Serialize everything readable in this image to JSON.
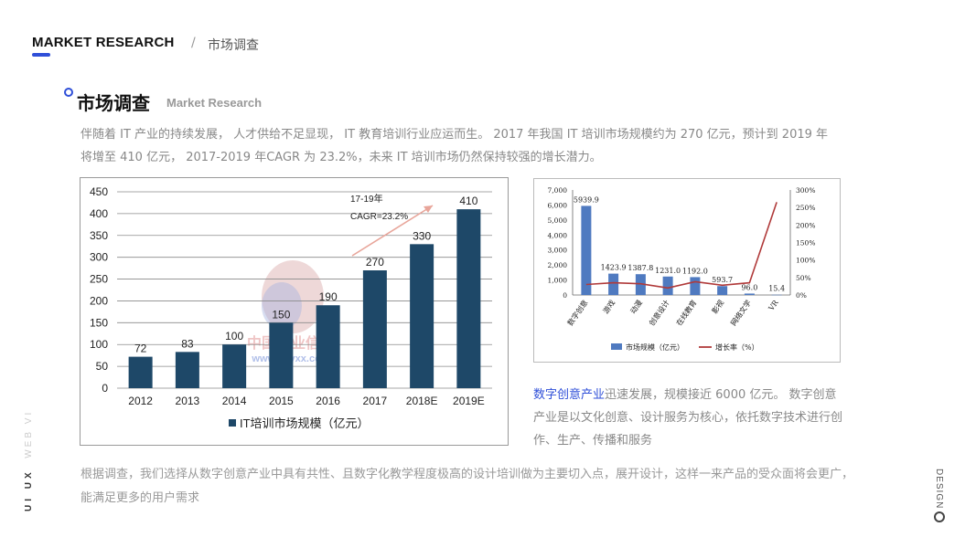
{
  "header": {
    "title": "MARKET RESEARCH",
    "separator": "/",
    "crumb": "市场调查"
  },
  "section": {
    "title": "市场调查",
    "subtitle": "Market Research"
  },
  "intro": "伴随着 IT 产业的持续发展， 人才供给不足显现， IT 教育培训行业应运而生。 2017 年我国 IT 培训市场规模约为 270 亿元，预计到 2019 年将增至 410 亿元， 2017-2019 年CAGR 为 23.2%，未来 IT 培训市场仍然保持较强的增长潜力。",
  "right_desc": {
    "highlight": "数字创意产业",
    "text": "迅速发展，规模接近 6000 亿元。 数字创意产业是以文化创意、设计服务为核心，依托数字技术进行创作、生产、传播和服务"
  },
  "conclusion": "根据调查，我们选择从数字创意产业中具有共性、且数字化教学程度极高的设计培训做为主要切入点，展开设计，这样一来产品的受众面将会更广，能满足更多的用户需求",
  "side": {
    "left_bold": "UI UX",
    "left_light": "WEB VI",
    "right": "DESIGN"
  },
  "watermark": {
    "cn": "中国产业信息",
    "url": "www.chyxx.com"
  },
  "chart_data": [
    {
      "type": "bar",
      "categories": [
        "2012",
        "2013",
        "2014",
        "2015",
        "2016",
        "2017",
        "2018E",
        "2019E"
      ],
      "series": [
        {
          "name": "IT培训市场规模（亿元）",
          "values": [
            72,
            83,
            100,
            150,
            190,
            270,
            330,
            410
          ],
          "color": "#1e4868"
        }
      ],
      "yticks": [
        "0",
        "50",
        "100",
        "150",
        "200",
        "250",
        "300",
        "350",
        "400",
        "450"
      ],
      "ylim": [
        0,
        450
      ],
      "grid": true,
      "annotation": {
        "line1": "17-19年",
        "line2": "CAGR=23.2%"
      },
      "legend": "bottom"
    },
    {
      "type": "bar",
      "categories": [
        "数字创意",
        "游戏",
        "动漫",
        "创意设计",
        "在线教育",
        "影视",
        "网络文学",
        "VR"
      ],
      "series": [
        {
          "name": "市场规模（亿元）",
          "type": "bar",
          "values": [
            5939.9,
            1423.9,
            1387.8,
            1231.0,
            1192.0,
            593.7,
            96.0,
            15.4
          ],
          "labels": [
            "5939.9",
            "1423.9",
            "1387.8",
            "1231.0",
            "1192.0",
            "593.7",
            "96.0",
            "15.4"
          ],
          "color": "#4f7ac0"
        },
        {
          "name": "增长率（%）",
          "type": "line",
          "axis": "right",
          "values": [
            30,
            35,
            32,
            20,
            38,
            28,
            35,
            265
          ],
          "color": "#b03a3a"
        }
      ],
      "y_left_ticks": [
        "7,000",
        "6,000",
        "5,000",
        "4,000",
        "3,000",
        "2,000",
        "1,000",
        "0"
      ],
      "y_right_ticks": [
        "300%",
        "250%",
        "200%",
        "150%",
        "100%",
        "50%",
        "0%"
      ],
      "ylim_left": [
        0,
        7000
      ],
      "ylim_right": [
        0,
        300
      ],
      "legend": "bottom"
    }
  ]
}
